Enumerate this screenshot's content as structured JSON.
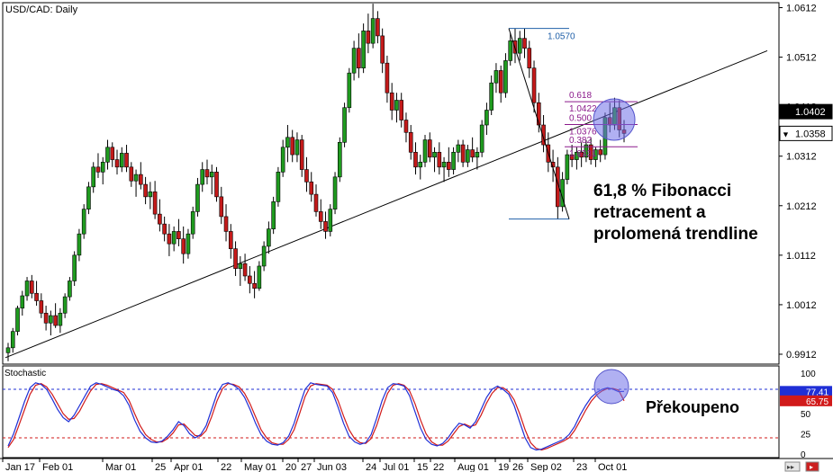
{
  "chart_data": {
    "type": "candlestick",
    "title": "USD/CAD: Daily",
    "price_axis": {
      "ticks": [
        "1.0612",
        "1.0512",
        "1.0412",
        "1.0312",
        "1.0212",
        "1.0112",
        "1.0012",
        "0.9912"
      ],
      "ylim": [
        0.9892,
        1.0622
      ],
      "highlight_labels": [
        {
          "label": "1.0402",
          "value": 1.0402,
          "color": "#000000",
          "text_color": "#ffffff"
        },
        {
          "label": "1.0358",
          "value": 1.0358,
          "color": "#ffffff",
          "text_color": "#000000",
          "marker": "▼"
        }
      ]
    },
    "x_tick_labels": [
      "Jan 17",
      "Feb 01",
      "Mar 01",
      "25",
      "Apr 01",
      "22",
      "May 01",
      "20",
      "27",
      "Jun 03",
      "24",
      "Jul 01",
      "15",
      "22",
      "Aug 01",
      "19",
      "26",
      "Sep 02",
      "23",
      "Oct 01"
    ],
    "trendline": {
      "start_value": 0.9905,
      "end_value": 1.0525
    },
    "fibonacci": {
      "swing_high": {
        "label": "1.0570",
        "value": 1.057
      },
      "swing_low": {
        "value": 1.0185
      },
      "levels": [
        {
          "ratio_label": "0.618",
          "price_label": "1.0422",
          "value": 1.0422
        },
        {
          "ratio_label": "0.500",
          "price_label": "1.0376",
          "value": 1.0376
        },
        {
          "ratio_label": "0.382",
          "price_label": "1.0331",
          "value": 1.0331
        }
      ],
      "ratio_color": "#8b1a8b",
      "line_color": "#8b1a8b",
      "swing_color": "#1f5fa8"
    },
    "candles": [
      [
        0.9915,
        0.9935,
        0.9898,
        0.9925
      ],
      [
        0.9925,
        0.9965,
        0.9915,
        0.9958
      ],
      [
        0.9958,
        1.001,
        0.995,
        1.0005
      ],
      [
        1.0005,
        1.004,
        0.999,
        1.003
      ],
      [
        1.003,
        1.0068,
        1.002,
        1.006
      ],
      [
        1.006,
        1.0072,
        1.0025,
        1.0035
      ],
      [
        1.0035,
        1.006,
        1.001,
        1.002
      ],
      [
        1.002,
        1.0035,
        0.9985,
        0.9995
      ],
      [
        0.9995,
        1.001,
        0.996,
        0.9975
      ],
      [
        0.9975,
        1.0,
        0.995,
        0.999
      ],
      [
        0.999,
        1.0015,
        0.9965,
        0.997
      ],
      [
        0.997,
        1.0005,
        0.9955,
        0.9995
      ],
      [
        0.9995,
        1.0035,
        0.9985,
        1.0028
      ],
      [
        1.0028,
        1.0068,
        1.002,
        1.006
      ],
      [
        1.006,
        1.012,
        1.005,
        1.0112
      ],
      [
        1.0112,
        1.0165,
        1.01,
        1.0155
      ],
      [
        1.0155,
        1.0215,
        1.0145,
        1.0205
      ],
      [
        1.0205,
        1.026,
        1.0195,
        1.025
      ],
      [
        1.025,
        1.03,
        1.0238,
        1.029
      ],
      [
        1.029,
        1.0318,
        1.0268,
        1.028
      ],
      [
        1.028,
        1.031,
        1.0255,
        1.03
      ],
      [
        1.03,
        1.0345,
        1.0285,
        1.033
      ],
      [
        1.033,
        1.034,
        1.029,
        1.0305
      ],
      [
        1.0305,
        1.0325,
        1.0275,
        1.029
      ],
      [
        1.029,
        1.033,
        1.028,
        1.0318
      ],
      [
        1.0318,
        1.0335,
        1.028,
        1.029
      ],
      [
        1.029,
        1.03,
        1.025,
        1.0262
      ],
      [
        1.0262,
        1.0285,
        1.023,
        1.0275
      ],
      [
        1.0275,
        1.03,
        1.0245,
        1.0255
      ],
      [
        1.0255,
        1.027,
        1.0215,
        1.023
      ],
      [
        1.023,
        1.026,
        1.0205,
        1.024
      ],
      [
        1.024,
        1.0262,
        1.0185,
        1.0195
      ],
      [
        1.0195,
        1.0225,
        1.016,
        1.0175
      ],
      [
        1.0175,
        1.019,
        1.014,
        1.0155
      ],
      [
        1.0155,
        1.0175,
        1.011,
        1.0135
      ],
      [
        1.0135,
        1.017,
        1.012,
        1.016
      ],
      [
        1.016,
        1.0185,
        1.013,
        1.0145
      ],
      [
        1.0145,
        1.017,
        1.0095,
        1.0115
      ],
      [
        1.0115,
        1.0165,
        1.0105,
        1.0155
      ],
      [
        1.0155,
        1.021,
        1.0145,
        1.02
      ],
      [
        1.02,
        1.0268,
        1.019,
        1.0255
      ],
      [
        1.0255,
        1.03,
        1.024,
        1.0285
      ],
      [
        1.0285,
        1.0305,
        1.0255,
        1.027
      ],
      [
        1.027,
        1.0295,
        1.0235,
        1.028
      ],
      [
        1.028,
        1.029,
        1.022,
        1.023
      ],
      [
        1.023,
        1.025,
        1.0175,
        1.019
      ],
      [
        1.019,
        1.0215,
        1.014,
        1.016
      ],
      [
        1.016,
        1.0175,
        1.0105,
        1.0125
      ],
      [
        1.0125,
        1.014,
        1.007,
        1.0085
      ],
      [
        1.0085,
        1.011,
        1.005,
        1.0095
      ],
      [
        1.0095,
        1.0115,
        1.006,
        1.007
      ],
      [
        1.007,
        1.009,
        1.0035,
        1.0055
      ],
      [
        1.0055,
        1.008,
        1.0025,
        1.0045
      ],
      [
        1.0045,
        1.01,
        1.004,
        1.009
      ],
      [
        1.009,
        1.014,
        1.008,
        1.013
      ],
      [
        1.013,
        1.018,
        1.0115,
        1.0165
      ],
      [
        1.0165,
        1.023,
        1.0155,
        1.022
      ],
      [
        1.022,
        1.029,
        1.021,
        1.028
      ],
      [
        1.028,
        1.0345,
        1.027,
        1.033
      ],
      [
        1.033,
        1.0375,
        1.03,
        1.035
      ],
      [
        1.035,
        1.0365,
        1.03,
        1.0315
      ],
      [
        1.0315,
        1.036,
        1.03,
        1.0345
      ],
      [
        1.0345,
        1.0355,
        1.027,
        1.0285
      ],
      [
        1.0285,
        1.031,
        1.024,
        1.026
      ],
      [
        1.026,
        1.028,
        1.022,
        1.0235
      ],
      [
        1.0235,
        1.0255,
        1.019,
        1.02
      ],
      [
        1.02,
        1.0225,
        1.0165,
        1.018
      ],
      [
        1.018,
        1.02,
        1.0145,
        1.016
      ],
      [
        1.016,
        1.0215,
        1.015,
        1.0205
      ],
      [
        1.0205,
        1.028,
        1.0195,
        1.027
      ],
      [
        1.027,
        1.035,
        1.026,
        1.034
      ],
      [
        1.034,
        1.042,
        1.033,
        1.041
      ],
      [
        1.041,
        1.049,
        1.04,
        1.048
      ],
      [
        1.048,
        1.0545,
        1.0465,
        1.053
      ],
      [
        1.053,
        1.056,
        1.047,
        1.049
      ],
      [
        1.049,
        1.058,
        1.048,
        1.0565
      ],
      [
        1.0565,
        1.06,
        1.052,
        1.054
      ],
      [
        1.054,
        1.062,
        1.053,
        1.059
      ],
      [
        1.059,
        1.0605,
        1.054,
        1.0555
      ],
      [
        1.0555,
        1.057,
        1.048,
        1.05
      ],
      [
        1.05,
        1.0515,
        1.042,
        1.044
      ],
      [
        1.044,
        1.046,
        1.0385,
        1.0405
      ],
      [
        1.0405,
        1.044,
        1.038,
        1.0425
      ],
      [
        1.0425,
        1.044,
        1.037,
        1.0385
      ],
      [
        1.0385,
        1.04,
        1.034,
        1.036
      ],
      [
        1.036,
        1.0375,
        1.0305,
        1.032
      ],
      [
        1.032,
        1.034,
        1.0275,
        1.029
      ],
      [
        1.029,
        1.0315,
        1.0265,
        1.03
      ],
      [
        1.03,
        1.0355,
        1.029,
        1.0345
      ],
      [
        1.0345,
        1.036,
        1.03,
        1.031
      ],
      [
        1.031,
        1.033,
        1.028,
        1.032
      ],
      [
        1.032,
        1.034,
        1.0275,
        1.029
      ],
      [
        1.029,
        1.031,
        1.026,
        1.03
      ],
      [
        1.03,
        1.033,
        1.027,
        1.0285
      ],
      [
        1.0285,
        1.033,
        1.0275,
        1.032
      ],
      [
        1.032,
        1.0345,
        1.03,
        1.0335
      ],
      [
        1.0335,
        1.0345,
        1.029,
        1.03
      ],
      [
        1.03,
        1.0335,
        1.029,
        1.0325
      ],
      [
        1.0325,
        1.035,
        1.03,
        1.031
      ],
      [
        1.031,
        1.033,
        1.0285,
        1.032
      ],
      [
        1.032,
        1.0385,
        1.031,
        1.0375
      ],
      [
        1.0375,
        1.042,
        1.0355,
        1.0405
      ],
      [
        1.0405,
        1.0475,
        1.0395,
        1.046
      ],
      [
        1.046,
        1.05,
        1.044,
        1.0485
      ],
      [
        1.0485,
        1.0495,
        1.042,
        1.044
      ],
      [
        1.044,
        1.052,
        1.043,
        1.0505
      ],
      [
        1.0505,
        1.056,
        1.0495,
        1.0545
      ],
      [
        1.0545,
        1.057,
        1.05,
        1.052
      ],
      [
        1.052,
        1.0565,
        1.0505,
        1.055
      ],
      [
        1.055,
        1.057,
        1.051,
        1.053
      ],
      [
        1.053,
        1.0545,
        1.047,
        1.049
      ],
      [
        1.049,
        1.0505,
        1.04,
        1.042
      ],
      [
        1.042,
        1.044,
        1.036,
        1.0375
      ],
      [
        1.0375,
        1.0395,
        1.032,
        1.0335
      ],
      [
        1.0335,
        1.036,
        1.028,
        1.03
      ],
      [
        1.03,
        1.0325,
        1.026,
        1.029
      ],
      [
        1.029,
        1.031,
        1.0185,
        1.021
      ],
      [
        1.021,
        1.028,
        1.02,
        1.0265
      ],
      [
        1.0265,
        1.0325,
        1.0255,
        1.0315
      ],
      [
        1.0315,
        1.0335,
        1.029,
        1.0305
      ],
      [
        1.0305,
        1.033,
        1.0285,
        1.032
      ],
      [
        1.032,
        1.034,
        1.029,
        1.031
      ],
      [
        1.031,
        1.0345,
        1.03,
        1.0335
      ],
      [
        1.0335,
        1.035,
        1.0295,
        1.0305
      ],
      [
        1.0305,
        1.033,
        1.029,
        1.0325
      ],
      [
        1.0325,
        1.0345,
        1.03,
        1.0315
      ],
      [
        1.0315,
        1.04,
        1.0305,
        1.039
      ],
      [
        1.039,
        1.042,
        1.036,
        1.0375
      ],
      [
        1.0375,
        1.043,
        1.0365,
        1.041
      ],
      [
        1.041,
        1.0425,
        1.035,
        1.0365
      ],
      [
        1.0365,
        1.0385,
        1.034,
        1.0358
      ]
    ],
    "stochastic": {
      "title": "Stochastic",
      "ticks": [
        "100",
        "75",
        "50",
        "25",
        "0"
      ],
      "ylim": [
        0,
        100
      ],
      "levels": [
        80,
        20
      ],
      "value_labels": [
        {
          "label": "77.41",
          "value": 77.41,
          "color": "#1f2fd6"
        },
        {
          "label": "65.75",
          "value": 65.75,
          "color": "#d11a1a"
        }
      ],
      "main_color": "#1f2fd6",
      "signal_color": "#d11a1a",
      "main": [
        10,
        25,
        45,
        65,
        82,
        88,
        86,
        80,
        68,
        55,
        45,
        40,
        48,
        60,
        72,
        84,
        88,
        86,
        83,
        80,
        78,
        72,
        60,
        42,
        28,
        20,
        15,
        14,
        16,
        22,
        30,
        40,
        35,
        25,
        20,
        24,
        35,
        55,
        75,
        86,
        88,
        85,
        80,
        70,
        55,
        38,
        24,
        16,
        12,
        11,
        14,
        22,
        38,
        60,
        80,
        88,
        86,
        85,
        84,
        76,
        58,
        38,
        22,
        15,
        12,
        14,
        24,
        44,
        66,
        82,
        87,
        86,
        84,
        72,
        52,
        32,
        18,
        12,
        10,
        13,
        20,
        30,
        38,
        36,
        32,
        40,
        55,
        70,
        80,
        84,
        80,
        74,
        60,
        40,
        20,
        8,
        5,
        6,
        9,
        12,
        15,
        18,
        24,
        34,
        48,
        60,
        70,
        76,
        80,
        82,
        80,
        77,
        77.41
      ],
      "signal": [
        8,
        18,
        36,
        55,
        74,
        85,
        87,
        83,
        74,
        62,
        50,
        43,
        44,
        53,
        66,
        78,
        86,
        87,
        85,
        82,
        79,
        76,
        66,
        50,
        35,
        24,
        18,
        15,
        15,
        19,
        26,
        36,
        37,
        30,
        23,
        22,
        29,
        46,
        66,
        81,
        87,
        86,
        83,
        75,
        62,
        46,
        30,
        20,
        14,
        12,
        12,
        18,
        30,
        50,
        71,
        84,
        87,
        86,
        85,
        80,
        66,
        47,
        30,
        19,
        14,
        13,
        19,
        35,
        56,
        75,
        85,
        87,
        85,
        78,
        62,
        42,
        25,
        15,
        11,
        11,
        16,
        25,
        34,
        37,
        34,
        36,
        48,
        63,
        75,
        82,
        82,
        77,
        67,
        50,
        30,
        14,
        7,
        5,
        7,
        10,
        13,
        16,
        20,
        29,
        41,
        54,
        65,
        73,
        78,
        81,
        81,
        79,
        65.75
      ]
    }
  },
  "annotations": {
    "fib_text": [
      "61,8 % Fibonacci",
      "retracement a",
      "prolomená trendline"
    ],
    "overbought_text": "Překoupeno",
    "fib_circle_color": "#6f6fe8"
  },
  "window_controls": {
    "scroll_left": "▸▸",
    "scroll_right": "▸"
  }
}
